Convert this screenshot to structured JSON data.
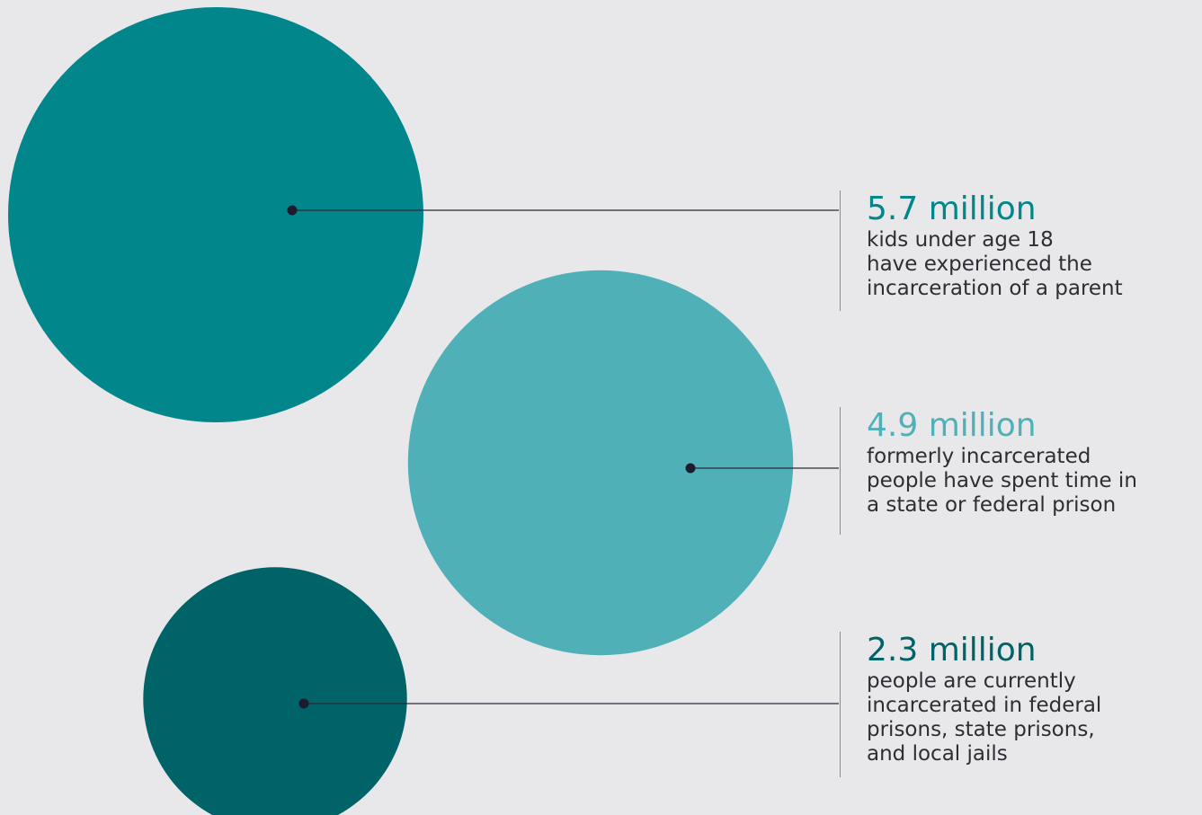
{
  "chart_data": {
    "type": "bubble",
    "title": "",
    "series": [
      {
        "value_label": "5.7 million",
        "value": 5.7,
        "unit": "million",
        "description_lines": [
          "kids under age 18",
          "have experienced the",
          "incarceration of a parent"
        ],
        "color": "#00868b"
      },
      {
        "value_label": "4.9 million",
        "value": 4.9,
        "unit": "million",
        "description_lines": [
          "formerly incarcerated",
          "people have spent time in",
          "a state or federal prison"
        ],
        "color": "#4fb1b7"
      },
      {
        "value_label": "2.3 million",
        "value": 2.3,
        "unit": "million",
        "description_lines": [
          "people are currently",
          "incarcerated in federal",
          "prisons, state prisons,",
          "and local jails"
        ],
        "color": "#006367"
      }
    ]
  },
  "colors": {
    "background": "#e8e8ea",
    "leader_line": "#2a2a3a",
    "dot": "#1c1c2e",
    "divider": "#8a8a8a",
    "body_text": "#2d2d34"
  }
}
